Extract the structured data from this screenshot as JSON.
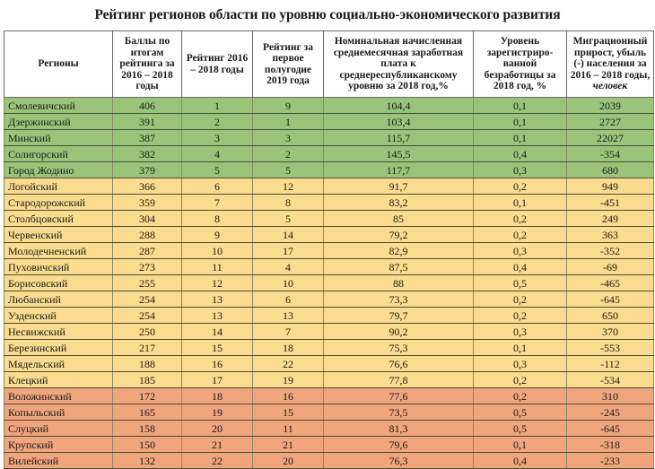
{
  "title": "Рейтинг регионов области по уровню социально-экономического развития",
  "columns": {
    "region": "Регионы",
    "score": "Баллы по итогам рейтинга за 2016 – 2018 годы",
    "rank_2016_2018": "Рейтинг 2016 – 2018 годы",
    "rank_h1_2019": "Рейтинг за первое полугодие 2019 года",
    "salary": "Номинальная начисленная среднемесячная заработная плата к среднереспубликанскому уровню за 2018 год,%",
    "unemployment": "Уровень зарегистриро-ванной безработицы за 2018 год, %",
    "migration": "Миграционный прирост, убыль (-) населения за 2016 – 2018 годы,",
    "migration_unit": "человек"
  },
  "group_colors": {
    "green": "#9bc47a",
    "yellow": "#fbdc8e",
    "orange": "#f0a57c"
  },
  "rows": [
    {
      "region": "Смолевичский",
      "score": "406",
      "rank": "1",
      "rank2019": "9",
      "salary": "104,4",
      "unemp": "0,1",
      "migr": "2039",
      "group": "green"
    },
    {
      "region": "Дзержинский",
      "score": "391",
      "rank": "2",
      "rank2019": "1",
      "salary": "103,4",
      "unemp": "0,1",
      "migr": "2727",
      "group": "green"
    },
    {
      "region": "Минский",
      "score": "387",
      "rank": "3",
      "rank2019": "3",
      "salary": "115,7",
      "unemp": "0,1",
      "migr": "22027",
      "group": "green"
    },
    {
      "region": "Солигорский",
      "score": "382",
      "rank": "4",
      "rank2019": "2",
      "salary": "145,5",
      "unemp": "0,4",
      "migr": "-354",
      "group": "green"
    },
    {
      "region": "Город Жодино",
      "score": "379",
      "rank": "5",
      "rank2019": "5",
      "salary": "117,7",
      "unemp": "0,3",
      "migr": "680",
      "group": "green"
    },
    {
      "region": "Логойский",
      "score": "366",
      "rank": "6",
      "rank2019": "12",
      "salary": "91,7",
      "unemp": "0,2",
      "migr": "949",
      "group": "yellow"
    },
    {
      "region": "Стародорожский",
      "score": "359",
      "rank": "7",
      "rank2019": "8",
      "salary": "83,2",
      "unemp": "0,1",
      "migr": "-451",
      "group": "yellow"
    },
    {
      "region": "Столбцовский",
      "score": "304",
      "rank": "8",
      "rank2019": "5",
      "salary": "85",
      "unemp": "0,2",
      "migr": "249",
      "group": "yellow"
    },
    {
      "region": "Червенский",
      "score": "288",
      "rank": "9",
      "rank2019": "14",
      "salary": "79,2",
      "unemp": "0,2",
      "migr": "363",
      "group": "yellow"
    },
    {
      "region": "Молодечненский",
      "score": "287",
      "rank": "10",
      "rank2019": "17",
      "salary": "82,9",
      "unemp": "0,3",
      "migr": "-352",
      "group": "yellow"
    },
    {
      "region": "Пуховичский",
      "score": "273",
      "rank": "11",
      "rank2019": "4",
      "salary": "87,5",
      "unemp": "0,4",
      "migr": "-69",
      "group": "yellow"
    },
    {
      "region": "Борисовский",
      "score": "255",
      "rank": "12",
      "rank2019": "10",
      "salary": "88",
      "unemp": "0,5",
      "migr": "-465",
      "group": "yellow"
    },
    {
      "region": "Любанский",
      "score": "254",
      "rank": "13",
      "rank2019": "6",
      "salary": "73,3",
      "unemp": "0,2",
      "migr": "-645",
      "group": "yellow"
    },
    {
      "region": "Узденский",
      "score": "254",
      "rank": "13",
      "rank2019": "13",
      "salary": "79,7",
      "unemp": "0,2",
      "migr": "650",
      "group": "yellow"
    },
    {
      "region": "Несвижский",
      "score": "250",
      "rank": "14",
      "rank2019": "7",
      "salary": "90,2",
      "unemp": "0,3",
      "migr": "370",
      "group": "yellow"
    },
    {
      "region": "Березинский",
      "score": "217",
      "rank": "15",
      "rank2019": "18",
      "salary": "75,3",
      "unemp": "0,1",
      "migr": "-553",
      "group": "yellow"
    },
    {
      "region": "Мядельский",
      "score": "188",
      "rank": "16",
      "rank2019": "22",
      "salary": "76,6",
      "unemp": "0,3",
      "migr": "-112",
      "group": "yellow"
    },
    {
      "region": "Клецкий",
      "score": "185",
      "rank": "17",
      "rank2019": "19",
      "salary": "77,8",
      "unemp": "0,2",
      "migr": "-534",
      "group": "yellow"
    },
    {
      "region": "Воложинский",
      "score": "172",
      "rank": "18",
      "rank2019": "16",
      "salary": "77,6",
      "unemp": "0,2",
      "migr": "310",
      "group": "orange"
    },
    {
      "region": "Копыльский",
      "score": "165",
      "rank": "19",
      "rank2019": "15",
      "salary": "73,5",
      "unemp": "0,5",
      "migr": "-245",
      "group": "orange"
    },
    {
      "region": "Слуцкий",
      "score": "158",
      "rank": "20",
      "rank2019": "11",
      "salary": "81,3",
      "unemp": "0,5",
      "migr": "-645",
      "group": "orange"
    },
    {
      "region": "Крупский",
      "score": "150",
      "rank": "21",
      "rank2019": "21",
      "salary": "79,6",
      "unemp": "0,1",
      "migr": "-318",
      "group": "orange"
    },
    {
      "region": "Вилейский",
      "score": "132",
      "rank": "22",
      "rank2019": "20",
      "salary": "76,3",
      "unemp": "0,4",
      "migr": "-233",
      "group": "orange"
    }
  ]
}
